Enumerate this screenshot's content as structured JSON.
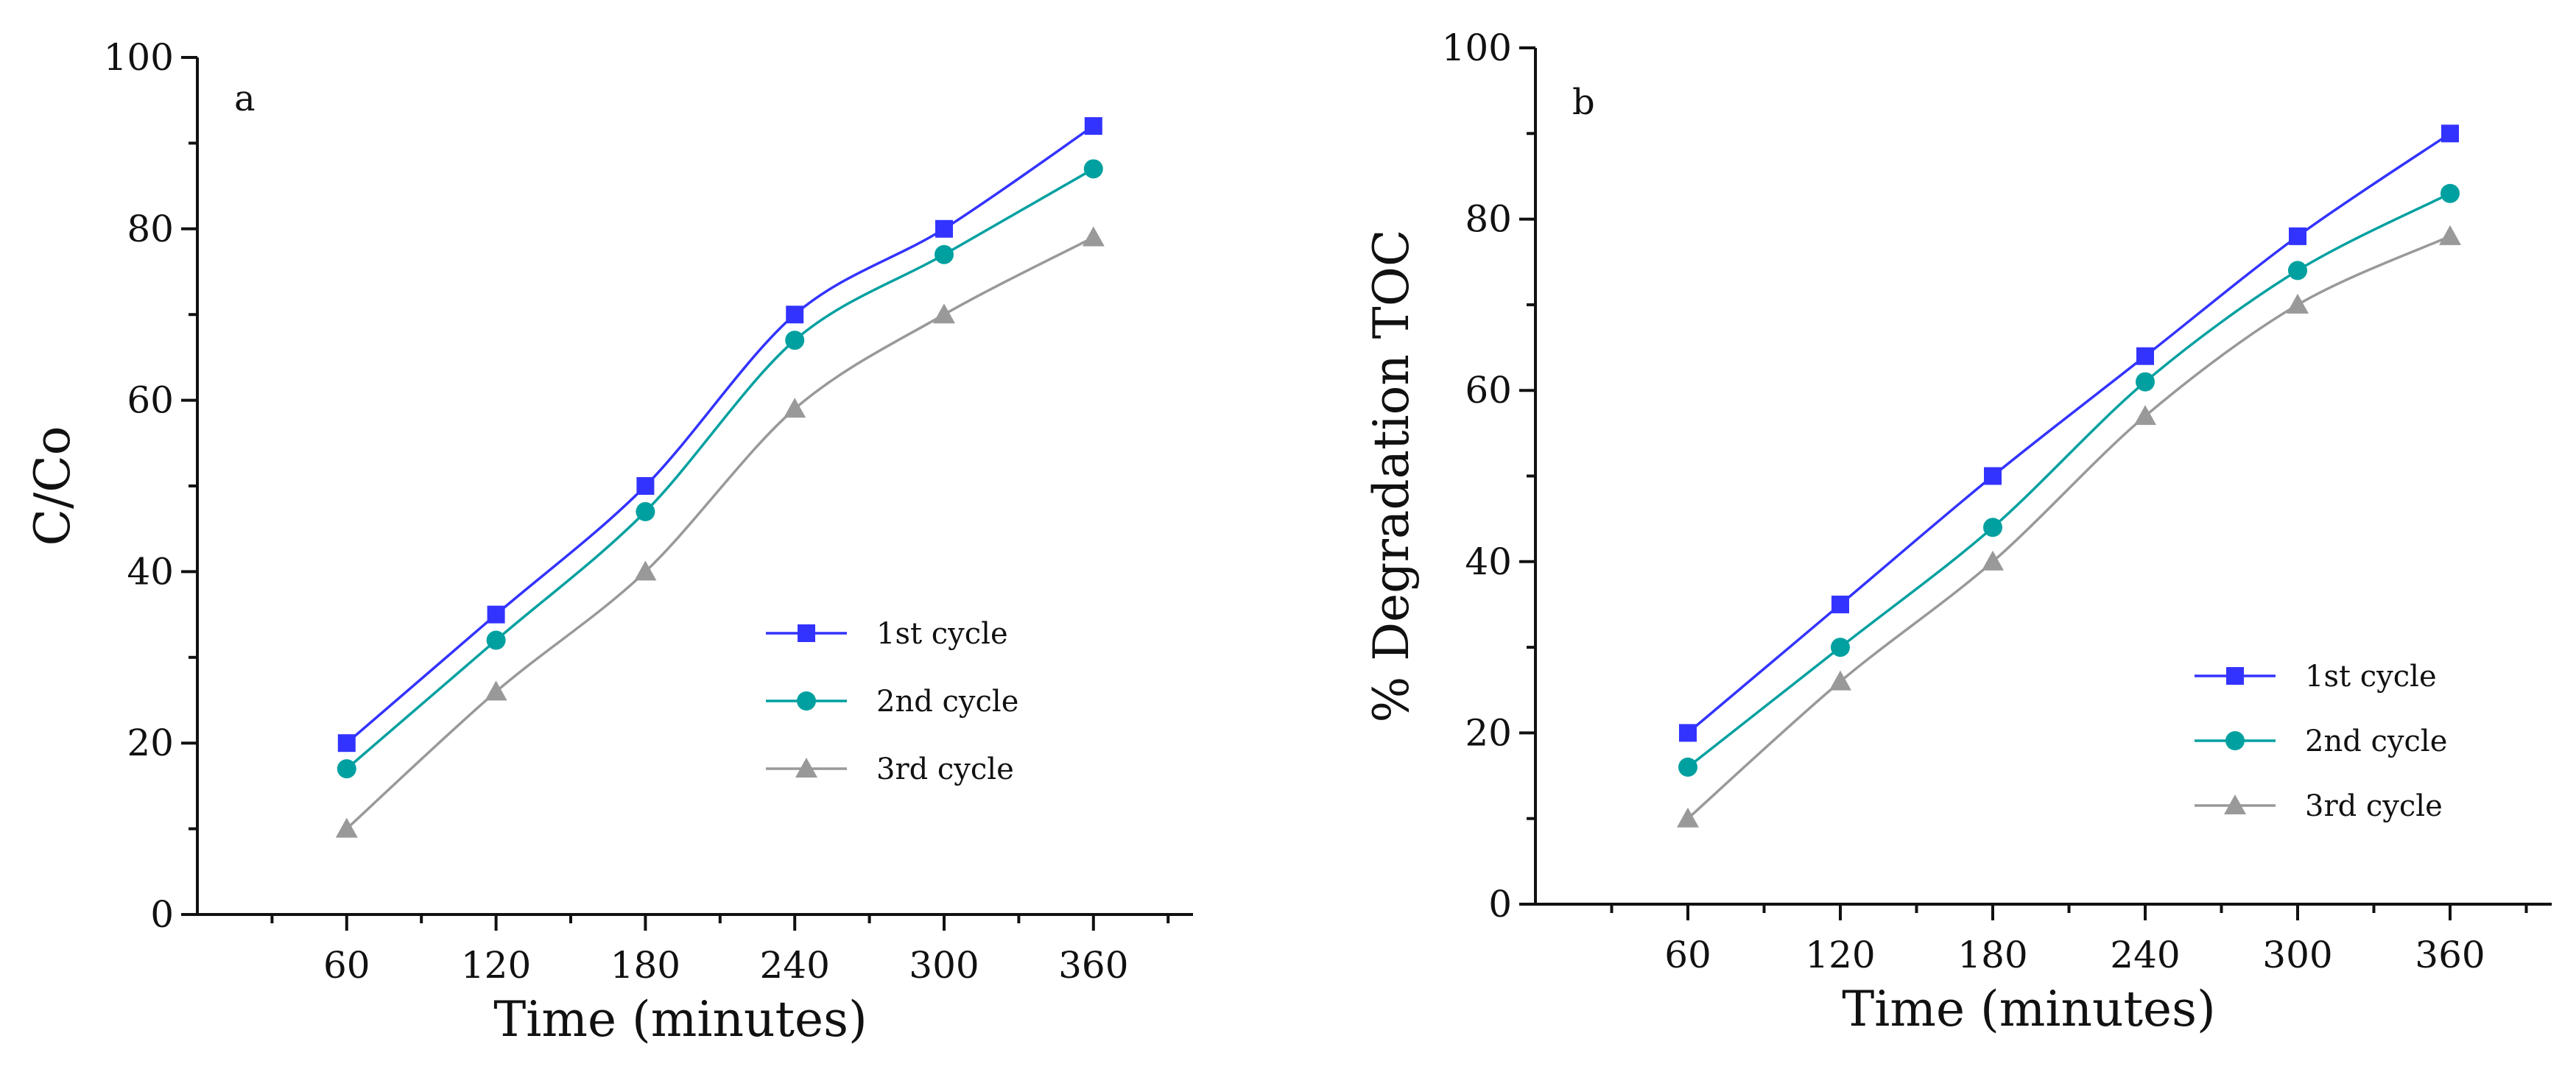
{
  "chart_data": [
    {
      "type": "line",
      "panel_label": "a",
      "title": "",
      "xlabel": "Time (minutes)",
      "ylabel": "C/Co",
      "x": [
        60,
        120,
        180,
        240,
        300,
        360
      ],
      "x_ticks": [
        "60",
        "120",
        "180",
        "240",
        "300",
        "360"
      ],
      "y_ticks": [
        "0",
        "20",
        "40",
        "60",
        "80",
        "100"
      ],
      "xlim": [
        0,
        400
      ],
      "ylim": [
        0,
        100
      ],
      "grid": false,
      "legend_position": "center-right",
      "series": [
        {
          "name": "1st cycle",
          "values": [
            20,
            35,
            50,
            70,
            80,
            92
          ],
          "color": "#3333ff",
          "marker": "square"
        },
        {
          "name": "2nd cycle",
          "values": [
            17,
            32,
            47,
            67,
            77,
            87
          ],
          "color": "#00a0a0",
          "marker": "circle"
        },
        {
          "name": "3rd cycle",
          "values": [
            10,
            26,
            40,
            59,
            70,
            79
          ],
          "color": "#999999",
          "marker": "triangle"
        }
      ]
    },
    {
      "type": "line",
      "panel_label": "b",
      "title": "",
      "xlabel": "Time (minutes)",
      "ylabel": "% Degradation TOC",
      "x": [
        60,
        120,
        180,
        240,
        300,
        360
      ],
      "x_ticks": [
        "60",
        "120",
        "180",
        "240",
        "300",
        "360"
      ],
      "y_ticks": [
        "0",
        "20",
        "40",
        "60",
        "80",
        "100"
      ],
      "xlim": [
        0,
        400
      ],
      "ylim": [
        0,
        100
      ],
      "grid": false,
      "legend_position": "lower-right",
      "series": [
        {
          "name": "1st cycle",
          "values": [
            20,
            35,
            50,
            64,
            78,
            90
          ],
          "color": "#3333ff",
          "marker": "square"
        },
        {
          "name": "2nd cycle",
          "values": [
            16,
            30,
            44,
            61,
            74,
            83
          ],
          "color": "#00a0a0",
          "marker": "circle"
        },
        {
          "name": "3rd cycle",
          "values": [
            10,
            26,
            40,
            57,
            70,
            78
          ],
          "color": "#999999",
          "marker": "triangle"
        }
      ]
    }
  ]
}
